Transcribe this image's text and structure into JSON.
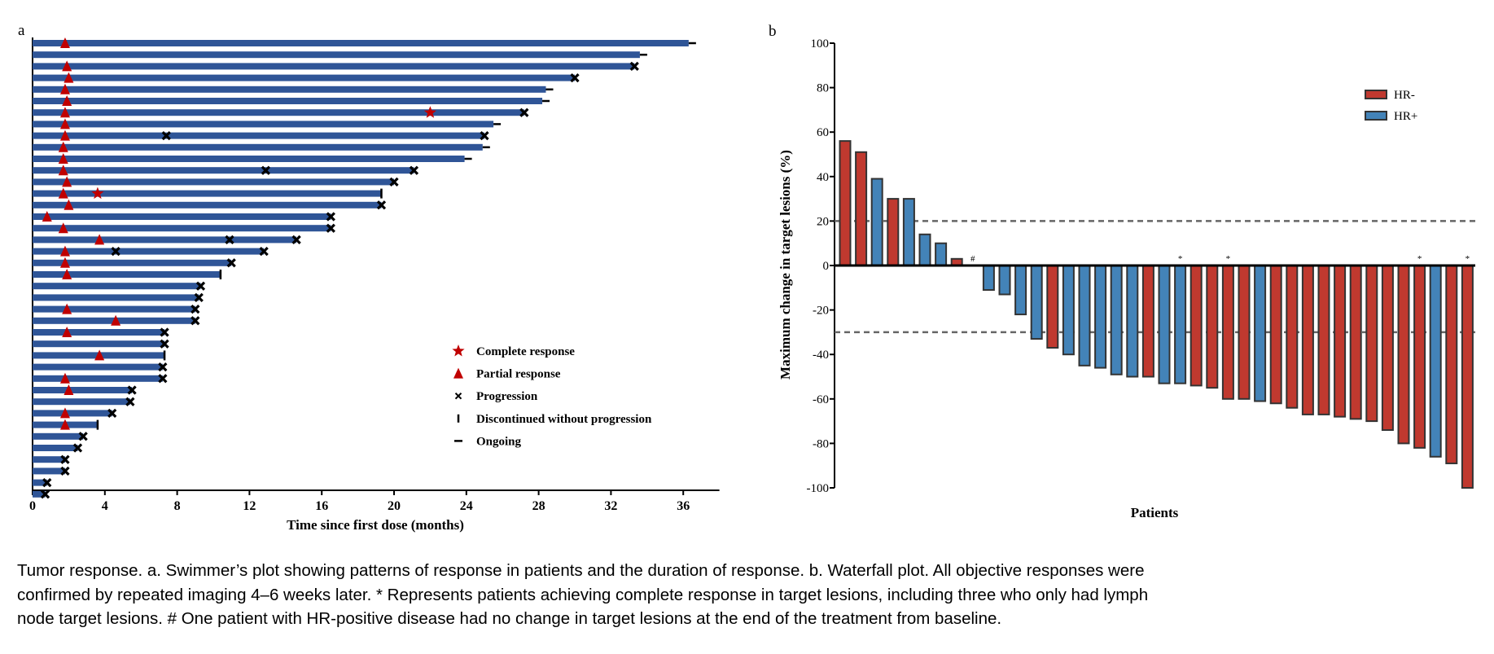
{
  "panel_a_label": "a",
  "panel_b_label": "b",
  "colors": {
    "swimmer_bar": "#2f5597",
    "marker_red": "#c00000",
    "marker_black": "#000000",
    "hr_negative": "#c0392f",
    "hr_positive": "#4383b8",
    "bar_border": "#333333",
    "threshold_line": "#666666"
  },
  "chart_data": [
    {
      "type": "bar",
      "orientation": "horizontal",
      "xlabel": "Time since first dose (months)",
      "ylabel": "",
      "xlim": [
        0,
        38
      ],
      "xticks": [
        0,
        4,
        8,
        12,
        16,
        20,
        24,
        28,
        32,
        36
      ],
      "grid": false,
      "legend_position": "bottom-right",
      "legend": [
        {
          "marker": "star",
          "label": "Complete response"
        },
        {
          "marker": "triangle",
          "label": "Partial response"
        },
        {
          "marker": "x",
          "label": "Progression"
        },
        {
          "marker": "vertical-tick",
          "label": "Discontinued without progression"
        },
        {
          "marker": "horizontal-dash",
          "label": "Ongoing"
        }
      ],
      "rows": [
        {
          "months": 36.3,
          "end": "ongoing",
          "pr": [
            1.8
          ],
          "cr": [],
          "pd": []
        },
        {
          "months": 33.6,
          "end": "ongoing",
          "pr": [],
          "cr": [],
          "pd": []
        },
        {
          "months": 33.3,
          "end": "progression",
          "pr": [
            1.9
          ],
          "cr": [],
          "pd": [
            33.3
          ]
        },
        {
          "months": 30.0,
          "end": "progression",
          "pr": [
            2.0
          ],
          "cr": [],
          "pd": [
            30.0
          ]
        },
        {
          "months": 28.4,
          "end": "ongoing",
          "pr": [
            1.8
          ],
          "cr": [],
          "pd": []
        },
        {
          "months": 28.2,
          "end": "ongoing",
          "pr": [
            1.9
          ],
          "cr": [],
          "pd": []
        },
        {
          "months": 27.2,
          "end": "progression",
          "pr": [
            1.8
          ],
          "cr": [
            22.0
          ],
          "pd": [
            27.2
          ]
        },
        {
          "months": 25.5,
          "end": "ongoing",
          "pr": [
            1.8
          ],
          "cr": [],
          "pd": []
        },
        {
          "months": 25.0,
          "end": "progression",
          "pr": [
            1.8
          ],
          "cr": [],
          "pd": [
            7.4,
            25.0
          ]
        },
        {
          "months": 24.9,
          "end": "ongoing",
          "pr": [
            1.7
          ],
          "cr": [],
          "pd": []
        },
        {
          "months": 23.9,
          "end": "ongoing",
          "pr": [
            1.7
          ],
          "cr": [],
          "pd": []
        },
        {
          "months": 21.1,
          "end": "progression",
          "pr": [
            1.7
          ],
          "cr": [],
          "pd": [
            12.9,
            21.1
          ]
        },
        {
          "months": 20.0,
          "end": "progression",
          "pr": [
            1.9
          ],
          "cr": [],
          "pd": [
            20.0
          ]
        },
        {
          "months": 19.3,
          "end": "discontinued",
          "pr": [
            1.7
          ],
          "cr": [
            3.6
          ],
          "pd": []
        },
        {
          "months": 19.3,
          "end": "progression",
          "pr": [
            2.0
          ],
          "cr": [],
          "pd": [
            19.3
          ]
        },
        {
          "months": 16.5,
          "end": "progression",
          "pr": [
            0.8
          ],
          "cr": [],
          "pd": [
            16.5
          ]
        },
        {
          "months": 16.5,
          "end": "progression",
          "pr": [
            1.7
          ],
          "cr": [],
          "pd": [
            16.5
          ]
        },
        {
          "months": 14.6,
          "end": "progression",
          "pr": [
            3.7
          ],
          "cr": [],
          "pd": [
            10.9,
            14.6
          ]
        },
        {
          "months": 12.8,
          "end": "progression",
          "pr": [
            1.8
          ],
          "cr": [],
          "pd": [
            4.6,
            12.8
          ]
        },
        {
          "months": 11.0,
          "end": "progression",
          "pr": [
            1.8
          ],
          "cr": [],
          "pd": [
            11.0
          ]
        },
        {
          "months": 10.4,
          "end": "discontinued",
          "pr": [
            1.9
          ],
          "cr": [],
          "pd": []
        },
        {
          "months": 9.3,
          "end": "progression",
          "pr": [],
          "cr": [],
          "pd": [
            9.3
          ]
        },
        {
          "months": 9.2,
          "end": "progression",
          "pr": [],
          "cr": [],
          "pd": [
            9.2
          ]
        },
        {
          "months": 9.0,
          "end": "progression",
          "pr": [
            1.9
          ],
          "cr": [],
          "pd": [
            9.0
          ]
        },
        {
          "months": 9.0,
          "end": "progression",
          "pr": [
            4.6
          ],
          "cr": [],
          "pd": [
            9.0
          ]
        },
        {
          "months": 7.3,
          "end": "progression",
          "pr": [
            1.9
          ],
          "cr": [],
          "pd": [
            7.3
          ]
        },
        {
          "months": 7.3,
          "end": "progression",
          "pr": [],
          "cr": [],
          "pd": [
            7.3
          ]
        },
        {
          "months": 7.3,
          "end": "discontinued",
          "pr": [
            3.7
          ],
          "cr": [],
          "pd": []
        },
        {
          "months": 7.2,
          "end": "progression",
          "pr": [],
          "cr": [],
          "pd": [
            7.2
          ]
        },
        {
          "months": 7.2,
          "end": "progression",
          "pr": [
            1.8
          ],
          "cr": [],
          "pd": [
            7.2
          ]
        },
        {
          "months": 5.5,
          "end": "progression",
          "pr": [
            2.0
          ],
          "cr": [],
          "pd": [
            5.5
          ]
        },
        {
          "months": 5.4,
          "end": "progression",
          "pr": [],
          "cr": [],
          "pd": [
            5.4
          ]
        },
        {
          "months": 4.4,
          "end": "progression",
          "pr": [
            1.8
          ],
          "cr": [],
          "pd": [
            4.4
          ]
        },
        {
          "months": 3.6,
          "end": "discontinued",
          "pr": [
            1.8
          ],
          "cr": [],
          "pd": []
        },
        {
          "months": 2.8,
          "end": "progression",
          "pr": [],
          "cr": [],
          "pd": [
            2.8
          ]
        },
        {
          "months": 2.5,
          "end": "progression",
          "pr": [],
          "cr": [],
          "pd": [
            2.5
          ]
        },
        {
          "months": 1.8,
          "end": "progression",
          "pr": [],
          "cr": [],
          "pd": [
            1.8
          ]
        },
        {
          "months": 1.8,
          "end": "progression",
          "pr": [],
          "cr": [],
          "pd": [
            1.8
          ]
        },
        {
          "months": 0.8,
          "end": "progression",
          "pr": [],
          "cr": [],
          "pd": [
            0.8
          ]
        },
        {
          "months": 0.7,
          "end": "progression",
          "pr": [],
          "cr": [],
          "pd": [
            0.7
          ]
        }
      ]
    },
    {
      "type": "bar",
      "orientation": "vertical",
      "xlabel": "Patients",
      "ylabel": "Maximum change in target lesions (%)",
      "ylim": [
        -100,
        100
      ],
      "yticks": [
        100,
        80,
        60,
        40,
        20,
        0,
        -20,
        -40,
        -60,
        -80,
        -100
      ],
      "reference_lines": [
        20,
        -30
      ],
      "grid": false,
      "legend_position": "top-right",
      "series": [
        {
          "name": "HR-",
          "color": "#c0392f"
        },
        {
          "name": "HR+",
          "color": "#4383b8"
        }
      ],
      "values": [
        56,
        51,
        39,
        30,
        30,
        14,
        10,
        3,
        0,
        -11,
        -13,
        -22,
        -33,
        -37,
        -40,
        -45,
        -46,
        -49,
        -50,
        -50,
        -53,
        -53,
        -54,
        -55,
        -60,
        -60,
        -61,
        -62,
        -64,
        -67,
        -67,
        -68,
        -69,
        -70,
        -74,
        -80,
        -82,
        -86,
        -89,
        -100
      ],
      "groups": [
        "HR-",
        "HR-",
        "HR+",
        "HR-",
        "HR+",
        "HR+",
        "HR+",
        "HR-",
        "HR+",
        "HR+",
        "HR+",
        "HR+",
        "HR+",
        "HR-",
        "HR+",
        "HR+",
        "HR+",
        "HR+",
        "HR+",
        "HR-",
        "HR+",
        "HR+",
        "HR-",
        "HR-",
        "HR-",
        "HR-",
        "HR+",
        "HR-",
        "HR-",
        "HR-",
        "HR-",
        "HR-",
        "HR-",
        "HR-",
        "HR-",
        "HR-",
        "HR-",
        "HR+",
        "HR-",
        "HR-"
      ],
      "annotations": [
        "",
        "",
        "",
        "",
        "",
        "",
        "",
        "",
        "#",
        "",
        "",
        "",
        "",
        "",
        "",
        "",
        "",
        "",
        "",
        "",
        "",
        "*",
        "",
        "",
        "*",
        "",
        "",
        "",
        "",
        "",
        "",
        "",
        "",
        "",
        "",
        "",
        "*",
        "",
        "",
        "*"
      ]
    }
  ],
  "caption": {
    "lines": [
      "Tumor response. a. Swimmer’s plot showing patterns of response in patients and the duration of response. b. Waterfall plot. All objective responses were",
      "confirmed by repeated imaging 4–6 weeks later. * Represents patients achieving complete response in target lesions, including three who only had lymph",
      "node target lesions. # One patient with HR-positive disease had no change in target lesions at the end of the treatment from baseline."
    ]
  }
}
